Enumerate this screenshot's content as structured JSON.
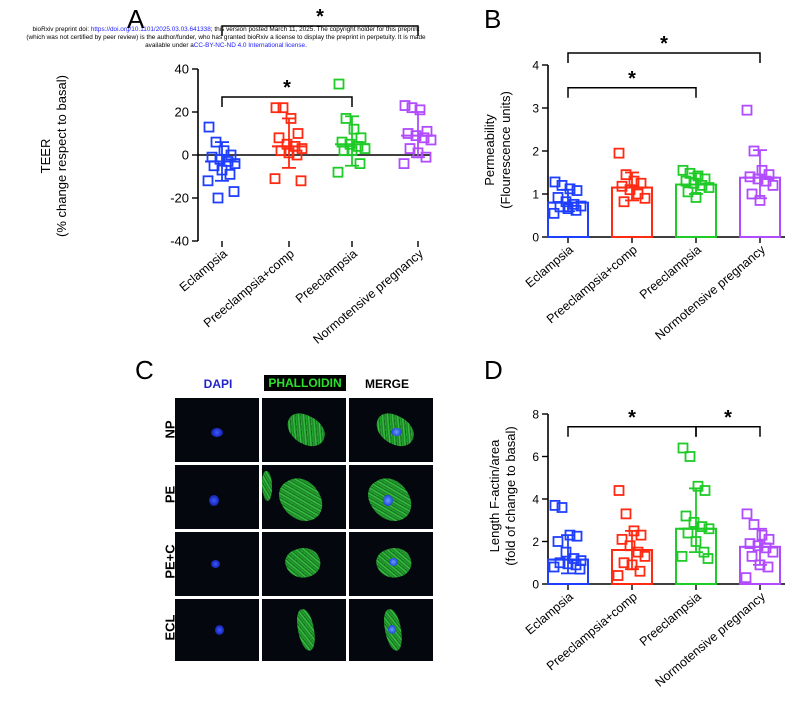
{
  "preprint_notice": {
    "line1_prefix": "bioRxiv preprint doi: ",
    "doi_link": "https://doi.org/10.1101/2025.03.03.641338",
    "line1_suffix": "; this version posted March 11, 2025. The copyright holder for this preprint",
    "line2": "(which was not certified by peer review) is the author/funder, who has granted bioRxiv a license to display the preprint in perpetuity. It is made",
    "line3_prefix": "available under a",
    "license_link": "CC-BY-NC-ND 4.0 International license",
    "line3_suffix": "."
  },
  "panel_letters": {
    "a": "A",
    "b": "B",
    "c": "C",
    "d": "D"
  },
  "categories": [
    "Eclampsia",
    "Preeclampsia+comp",
    "Preeclampsia",
    "Normotensive pregnancy"
  ],
  "colors": {
    "eclampsia": "#1f3fff",
    "preeclampsia_comp": "#ff2a12",
    "preeclampsia": "#1ecb27",
    "normotensive": "#b04bff"
  },
  "chart_data": [
    {
      "id": "A",
      "type": "scatter",
      "xlabel": "",
      "ylabel_lines": [
        "TEER",
        "(% change respect to basal)"
      ],
      "ylim": [
        -40,
        40
      ],
      "yticks": [
        "-40",
        "-20",
        "0",
        "20",
        "40"
      ],
      "zero_line": true,
      "series": [
        {
          "mean": -3,
          "sd_low": -12,
          "sd_high": 6,
          "values": [
            13,
            6,
            2,
            0,
            -1,
            -2,
            -3,
            -4,
            -5,
            -7,
            -9,
            -12,
            -17,
            -20
          ]
        },
        {
          "mean": 4,
          "sd_low": -6,
          "sd_high": 17,
          "values": [
            22,
            22,
            17,
            10,
            8,
            5,
            4,
            3,
            2,
            1,
            0,
            -11,
            -12
          ]
        },
        {
          "mean": 5,
          "sd_low": -5,
          "sd_high": 18,
          "values": [
            33,
            17,
            12,
            8,
            6,
            5,
            4,
            3,
            2,
            2,
            -4,
            -8
          ]
        },
        {
          "mean": 9,
          "sd_low": -1,
          "sd_high": 20,
          "values": [
            23,
            22,
            21,
            11,
            10,
            9,
            8,
            7,
            3,
            1,
            -1,
            -4
          ]
        }
      ],
      "significance": [
        {
          "from": 0,
          "to": 2,
          "level": 27,
          "label": "*"
        },
        {
          "from": 0,
          "to": 3,
          "level": 60,
          "label": "*"
        }
      ]
    },
    {
      "id": "B",
      "type": "bar",
      "xlabel": "",
      "ylabel_lines": [
        "Permeability",
        "(Flourescence units)"
      ],
      "ylim": [
        0,
        4
      ],
      "yticks": [
        "0",
        "1",
        "2",
        "3",
        "4"
      ],
      "series": [
        {
          "mean": 0.8,
          "sd_low": 0.6,
          "sd_high": 1.1,
          "values": [
            1.28,
            1.2,
            1.12,
            1.08,
            0.92,
            0.82,
            0.76,
            0.72,
            0.7,
            0.66,
            0.62,
            0.55
          ]
        },
        {
          "mean": 1.15,
          "sd_low": 0.85,
          "sd_high": 1.5,
          "values": [
            1.95,
            1.45,
            1.3,
            1.25,
            1.18,
            1.1,
            1.0,
            0.9,
            0.82
          ]
        },
        {
          "mean": 1.22,
          "sd_low": 1.0,
          "sd_high": 1.48,
          "values": [
            1.55,
            1.48,
            1.42,
            1.35,
            1.3,
            1.25,
            1.2,
            1.15,
            1.05,
            0.92
          ]
        },
        {
          "mean": 1.38,
          "sd_low": 0.9,
          "sd_high": 2.02,
          "values": [
            2.95,
            2.0,
            1.55,
            1.45,
            1.4,
            1.35,
            1.3,
            1.2,
            1.0,
            0.85
          ]
        }
      ],
      "significance": [
        {
          "from": 0,
          "to": 2,
          "level": 3.47,
          "label": "*"
        },
        {
          "from": 0,
          "to": 3,
          "level": 4.28,
          "label": "*"
        }
      ]
    },
    {
      "id": "D",
      "type": "bar",
      "xlabel": "",
      "ylabel_lines": [
        "Length F-actin/area",
        "(fold of change to basal)"
      ],
      "ylim": [
        0,
        8
      ],
      "yticks": [
        "0",
        "2",
        "4",
        "6",
        "8"
      ],
      "series": [
        {
          "mean": 1.15,
          "sd_low": 0.5,
          "sd_high": 2.3,
          "values": [
            3.7,
            3.6,
            2.3,
            2.25,
            2.0,
            1.5,
            1.2,
            1.1,
            1.0,
            0.95,
            0.9,
            0.8,
            0.7
          ]
        },
        {
          "mean": 1.6,
          "sd_low": 0.7,
          "sd_high": 2.5,
          "values": [
            4.4,
            3.3,
            2.5,
            2.3,
            2.1,
            1.8,
            1.5,
            1.3,
            1.0,
            0.9,
            0.6,
            0.4
          ]
        },
        {
          "mean": 2.6,
          "sd_low": 1.5,
          "sd_high": 4.5,
          "values": [
            6.4,
            6.0,
            4.6,
            4.4,
            3.2,
            2.9,
            2.7,
            2.6,
            2.4,
            2.0,
            1.5,
            1.3,
            1.2
          ]
        },
        {
          "mean": 1.75,
          "sd_low": 0.9,
          "sd_high": 2.6,
          "values": [
            3.3,
            2.8,
            2.3,
            2.1,
            1.9,
            1.8,
            1.7,
            1.5,
            1.3,
            0.9,
            0.8,
            0.3
          ]
        }
      ],
      "significance": [
        {
          "from": 0,
          "to": 2,
          "level": 7.4,
          "label": "*"
        },
        {
          "from": 2,
          "to": 3,
          "level": 7.4,
          "label": "*"
        }
      ]
    }
  ],
  "panel_c": {
    "columns": [
      "DAPI",
      "PHALLOIDIN",
      "MERGE"
    ],
    "column_colors": [
      "#2323c8",
      "#2ee02e",
      "#000000"
    ],
    "rows": [
      "NP",
      "PE",
      "PE+C",
      "ECL"
    ]
  }
}
